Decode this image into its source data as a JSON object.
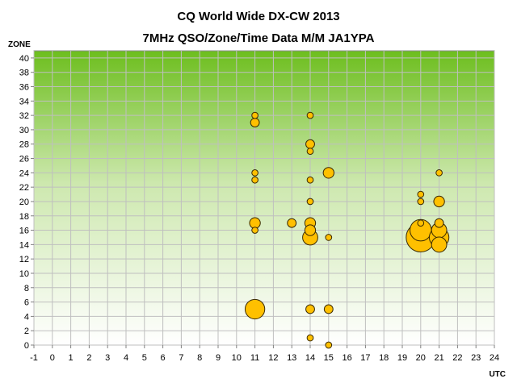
{
  "chart_data": {
    "type": "bubble",
    "title": "CQ World Wide DX-CW 2013",
    "subtitle": "7MHz QSO/Zone/Time Data M/M JA1YPA",
    "xlabel": "UTC",
    "ylabel": "ZONE",
    "xlim": [
      -1,
      24
    ],
    "ylim": [
      0,
      41
    ],
    "x_ticks": [
      -1,
      0,
      1,
      2,
      3,
      4,
      5,
      6,
      7,
      8,
      9,
      10,
      11,
      12,
      13,
      14,
      15,
      16,
      17,
      18,
      19,
      20,
      21,
      22,
      23,
      24
    ],
    "y_ticks": [
      0,
      2,
      4,
      6,
      8,
      10,
      12,
      14,
      16,
      18,
      20,
      22,
      24,
      26,
      28,
      30,
      32,
      34,
      36,
      38,
      40
    ],
    "grid": true,
    "legend": "none",
    "colors": {
      "bubble_fill": "#FFC000",
      "bubble_stroke": "#3A2A00",
      "bg_top": "#6DBE1E",
      "bg_bottom": "#FFFFFF"
    },
    "points": [
      {
        "x": 11,
        "y": 32,
        "size": 1
      },
      {
        "x": 11,
        "y": 31,
        "size": 2
      },
      {
        "x": 11,
        "y": 24,
        "size": 1
      },
      {
        "x": 11,
        "y": 23,
        "size": 1
      },
      {
        "x": 11,
        "y": 17,
        "size": 3
      },
      {
        "x": 11,
        "y": 16,
        "size": 1
      },
      {
        "x": 11,
        "y": 5,
        "size": 10
      },
      {
        "x": 13,
        "y": 17,
        "size": 2
      },
      {
        "x": 14,
        "y": 32,
        "size": 1
      },
      {
        "x": 14,
        "y": 28,
        "size": 2
      },
      {
        "x": 14,
        "y": 27,
        "size": 1
      },
      {
        "x": 14,
        "y": 23,
        "size": 1
      },
      {
        "x": 14,
        "y": 20,
        "size": 1
      },
      {
        "x": 14,
        "y": 17,
        "size": 3
      },
      {
        "x": 14,
        "y": 16,
        "size": 3
      },
      {
        "x": 14,
        "y": 15,
        "size": 6
      },
      {
        "x": 14,
        "y": 5,
        "size": 2
      },
      {
        "x": 14,
        "y": 1,
        "size": 1
      },
      {
        "x": 15,
        "y": 24,
        "size": 3
      },
      {
        "x": 15,
        "y": 15,
        "size": 1
      },
      {
        "x": 15,
        "y": 5,
        "size": 2
      },
      {
        "x": 15,
        "y": 0,
        "size": 1
      },
      {
        "x": 20,
        "y": 21,
        "size": 1
      },
      {
        "x": 20,
        "y": 20,
        "size": 1
      },
      {
        "x": 20,
        "y": 17,
        "size": 1
      },
      {
        "x": 20,
        "y": 16,
        "size": 12
      },
      {
        "x": 20,
        "y": 15,
        "size": 22
      },
      {
        "x": 21,
        "y": 24,
        "size": 1
      },
      {
        "x": 21,
        "y": 20,
        "size": 3
      },
      {
        "x": 21,
        "y": 17,
        "size": 2
      },
      {
        "x": 21,
        "y": 16,
        "size": 6
      },
      {
        "x": 21,
        "y": 15,
        "size": 10
      },
      {
        "x": 21,
        "y": 14,
        "size": 6
      }
    ]
  }
}
